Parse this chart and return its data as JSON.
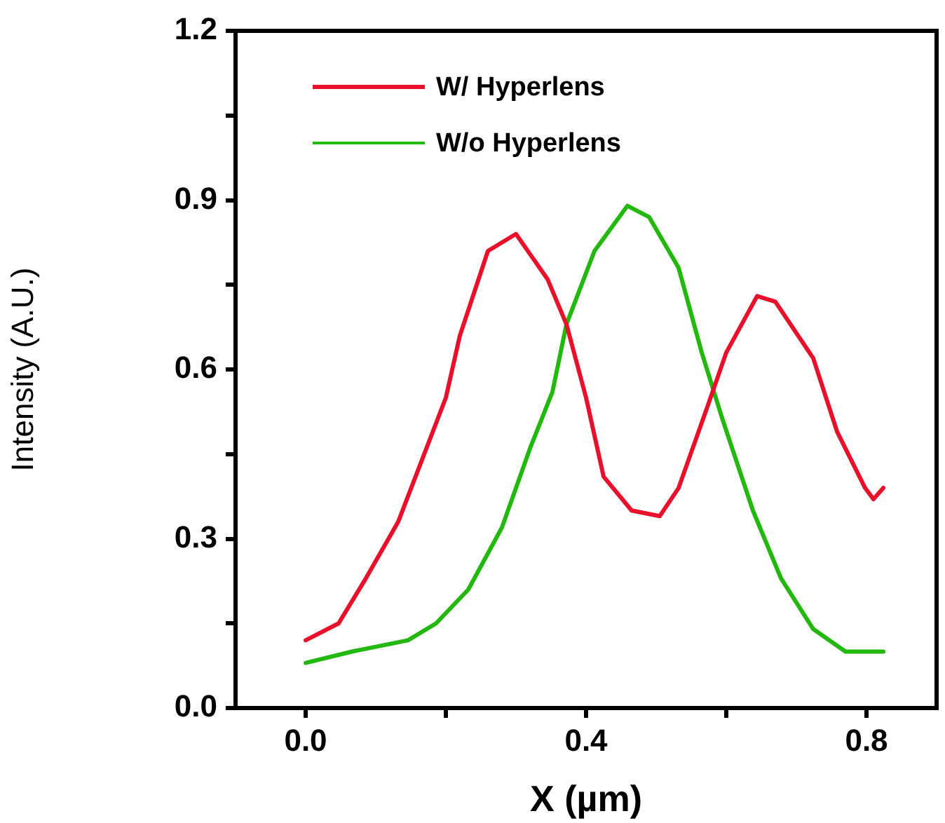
{
  "chart_data": {
    "type": "line",
    "xlabel": "X (µm)",
    "ylabel": "Intensity (A.U.)",
    "xlim": [
      -0.1,
      0.9
    ],
    "xticks": [
      {
        "value": 0,
        "label": "0.0"
      },
      {
        "value": 0.2,
        "label": null
      },
      0.4,
      {
        "value": 0.6,
        "label": null
      },
      0.8
    ],
    "ylim": [
      0,
      1.2
    ],
    "yticks": [
      {
        "value": 0,
        "label": "0.0"
      },
      {
        "value": 0.15,
        "label": null
      },
      0.3,
      {
        "value": 0.45,
        "label": null
      },
      0.6,
      {
        "value": 0.75,
        "label": null
      },
      0.9,
      {
        "value": 1.05,
        "label": null
      },
      1.2
    ],
    "grid": false,
    "legend": "top left",
    "marker": "none",
    "line_style": "solid",
    "series": [
      {
        "name": "W/ Hyperlens",
        "color": "#e8102a",
        "x": [
          0,
          0.047,
          0.086,
          0.132,
          0.166,
          0.2,
          0.22,
          0.26,
          0.3,
          0.345,
          0.372,
          0.4,
          0.425,
          0.465,
          0.505,
          0.532,
          0.572,
          0.6,
          0.644,
          0.67,
          0.724,
          0.758,
          0.798,
          0.81,
          0.824
        ],
        "values": [
          0.12,
          0.15,
          0.23,
          0.33,
          0.44,
          0.55,
          0.66,
          0.81,
          0.84,
          0.76,
          0.68,
          0.55,
          0.41,
          0.35,
          0.34,
          0.39,
          0.53,
          0.63,
          0.73,
          0.72,
          0.62,
          0.49,
          0.39,
          0.37,
          0.39
        ]
      },
      {
        "name": "W/o Hyperlens",
        "color": "#22b80e",
        "x": [
          0,
          0.066,
          0.146,
          0.186,
          0.232,
          0.28,
          0.32,
          0.352,
          0.372,
          0.412,
          0.459,
          0.49,
          0.532,
          0.565,
          0.595,
          0.638,
          0.678,
          0.724,
          0.77,
          0.824
        ],
        "values": [
          0.08,
          0.1,
          0.12,
          0.15,
          0.21,
          0.32,
          0.46,
          0.56,
          0.68,
          0.81,
          0.89,
          0.87,
          0.78,
          0.63,
          0.51,
          0.35,
          0.23,
          0.14,
          0.1,
          0.1
        ]
      }
    ]
  }
}
